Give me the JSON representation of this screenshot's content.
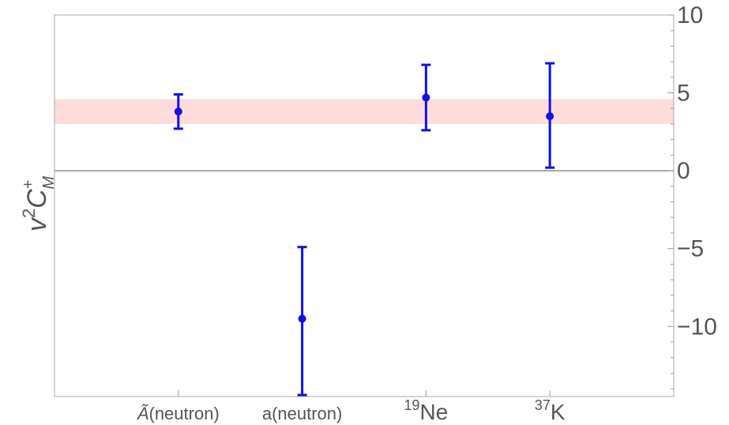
{
  "chart_data": {
    "type": "scatter",
    "ylabel": {
      "base": "v",
      "power": "2",
      "symbol": "C",
      "sup": "+",
      "sub": "M"
    },
    "categories": [
      {
        "main": "Ã",
        "suffix": "(neutron)",
        "sup": ""
      },
      {
        "main": "a(neutron)",
        "suffix": "",
        "sup": ""
      },
      {
        "main": "Ne",
        "suffix": "",
        "sup": "19"
      },
      {
        "main": "K",
        "suffix": "",
        "sup": "37"
      }
    ],
    "x_positions": [
      1,
      2,
      3,
      4
    ],
    "xlim": [
      0,
      5
    ],
    "ylim": [
      -14.5,
      10
    ],
    "yticks_major": [
      -10,
      -5,
      0,
      5,
      10
    ],
    "yticks_major_labels": [
      "−10",
      "−5",
      "0",
      "5",
      "10"
    ],
    "ytick_minor_step": 1,
    "points": [
      {
        "x": 1,
        "y": 3.8,
        "err_low": 2.7,
        "err_high": 4.9
      },
      {
        "x": 2,
        "y": -9.5,
        "err_low": -14.4,
        "err_high": -4.9
      },
      {
        "x": 3,
        "y": 4.7,
        "err_low": 2.6,
        "err_high": 6.8
      },
      {
        "x": 4,
        "y": 3.5,
        "err_low": 0.2,
        "err_high": 6.9
      }
    ],
    "band": {
      "y_low": 3.0,
      "y_high": 4.6,
      "color": "#ffdcdc"
    },
    "zero_line": true,
    "grid": false,
    "colors": {
      "points": "#1010e8",
      "frame": "#aaaaaa",
      "text": "#555555"
    }
  }
}
